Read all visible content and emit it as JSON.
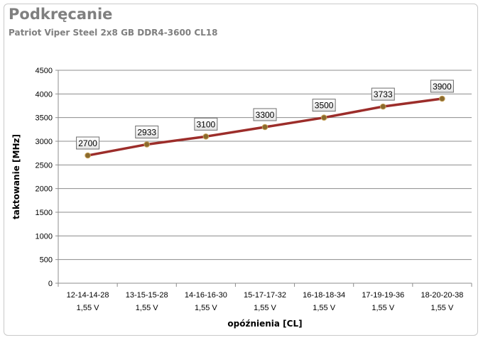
{
  "title": "Podkręcanie",
  "subtitle": "Patriot Viper Steel 2x8 GB DDR4-3600 CL18",
  "colors": {
    "line": "#9c2d2a",
    "marker": "#8a6a2e",
    "grid": "#8c8c8c",
    "title": "#7f7f7f"
  },
  "chart_data": {
    "type": "line",
    "title": "Podkręcanie",
    "subtitle": "Patriot Viper Steel 2x8 GB DDR4-3600 CL18",
    "xlabel": "opóźnienia [CL]",
    "ylabel": "taktowanie [MHz]",
    "ylim": [
      0,
      4500
    ],
    "yticks": [
      0,
      500,
      1000,
      1500,
      2000,
      2500,
      3000,
      3500,
      4000,
      4500
    ],
    "grid": true,
    "legend": "none",
    "categories": [
      {
        "line1": "12-14-14-28",
        "line2": "1,55 V"
      },
      {
        "line1": "13-15-15-28",
        "line2": "1,55 V"
      },
      {
        "line1": "14-16-16-30",
        "line2": "1,55 V"
      },
      {
        "line1": "15-17-17-32",
        "line2": "1,55 V"
      },
      {
        "line1": "16-18-18-34",
        "line2": "1,55 V"
      },
      {
        "line1": "17-19-19-36",
        "line2": "1,55 V"
      },
      {
        "line1": "18-20-20-38",
        "line2": "1,55 V"
      }
    ],
    "values": [
      2700,
      2933,
      3100,
      3300,
      3500,
      3733,
      3900
    ]
  }
}
